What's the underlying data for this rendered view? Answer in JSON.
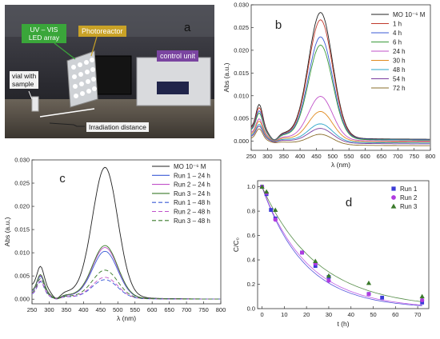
{
  "photo": {
    "panel_letter": "a",
    "labels": {
      "led": [
        "UV – VIS",
        "LED array"
      ],
      "photoreactor": "Photoreactor",
      "control": "control unit",
      "vial": [
        "vial with",
        "sample"
      ],
      "distance": "Irradiation distance"
    },
    "colors": {
      "green_label": "#3aa63a",
      "yellow_label": "#c9a227",
      "purple_label": "#7a44a0"
    }
  },
  "chart_data": [
    {
      "panel": "b",
      "type": "line",
      "xlabel": "λ (nm)",
      "ylabel": "Abs (a.u.)",
      "xlim": [
        250,
        800
      ],
      "ylim": [
        -0.002,
        0.03
      ],
      "xticks": [
        "250",
        "300",
        "350",
        "400",
        "450",
        "500",
        "550",
        "600",
        "650",
        "700",
        "750",
        "800"
      ],
      "yticks": [
        "0.000",
        "0.005",
        "0.010",
        "0.015",
        "0.020",
        "0.025",
        "0.030"
      ],
      "legend_placement": "top-right",
      "series": [
        {
          "name": "MO 10⁻⁶ M",
          "color": "#222222",
          "dash": "",
          "peak": 0.0278,
          "uvpeak": 0.0082,
          "min": 0.003,
          "tail": 0.0004
        },
        {
          "name": "1 h",
          "color": "#c0392b",
          "dash": "",
          "peak": 0.0262,
          "uvpeak": 0.0075,
          "min": 0.0028,
          "tail": 0.0003
        },
        {
          "name": "4 h",
          "color": "#3b5bd6",
          "dash": "",
          "peak": 0.0225,
          "uvpeak": 0.0068,
          "min": 0.0026,
          "tail": 0.0003
        },
        {
          "name": "6 h",
          "color": "#3a9a3a",
          "dash": "",
          "peak": 0.0207,
          "uvpeak": 0.0063,
          "min": 0.0024,
          "tail": 0.0002
        },
        {
          "name": "24 h",
          "color": "#c051c9",
          "dash": "",
          "peak": 0.0095,
          "uvpeak": 0.005,
          "min": 0.0018,
          "tail": 0.0
        },
        {
          "name": "30 h",
          "color": "#e08a1e",
          "dash": "",
          "peak": 0.0062,
          "uvpeak": 0.0045,
          "min": 0.0015,
          "tail": -0.0002
        },
        {
          "name": "48 h",
          "color": "#2aa5c8",
          "dash": "",
          "peak": 0.0035,
          "uvpeak": 0.0038,
          "min": 0.0012,
          "tail": -0.0004
        },
        {
          "name": "54 h",
          "color": "#7b3fa0",
          "dash": "",
          "peak": 0.0025,
          "uvpeak": 0.0034,
          "min": 0.001,
          "tail": -0.0006
        },
        {
          "name": "72 h",
          "color": "#8a6d2b",
          "dash": "",
          "peak": 0.0012,
          "uvpeak": 0.0028,
          "min": 0.0006,
          "tail": -0.001
        }
      ]
    },
    {
      "panel": "c",
      "type": "line",
      "xlabel": "λ (nm)",
      "ylabel": "Abs (a.u.)",
      "xlim": [
        250,
        800
      ],
      "ylim": [
        -0.001,
        0.03
      ],
      "xticks": [
        "250",
        "300",
        "350",
        "400",
        "450",
        "500",
        "550",
        "600",
        "650",
        "700",
        "750",
        "800"
      ],
      "yticks": [
        "0.000",
        "0.005",
        "0.010",
        "0.015",
        "0.020",
        "0.025",
        "0.030"
      ],
      "legend_placement": "top-right",
      "series": [
        {
          "name": "MO 10⁻⁶ M",
          "color": "#222222",
          "dash": "",
          "peak": 0.0278,
          "uvpeak": 0.0072,
          "min": 0.003,
          "tail": 0.0
        },
        {
          "name": "Run 1 – 24 h",
          "color": "#3b5bd6",
          "dash": "",
          "peak": 0.01,
          "uvpeak": 0.005,
          "min": 0.0016,
          "tail": 0.0
        },
        {
          "name": "Run 2 – 24 h",
          "color": "#c051c9",
          "dash": "",
          "peak": 0.0108,
          "uvpeak": 0.0052,
          "min": 0.0017,
          "tail": 0.0
        },
        {
          "name": "Run 3 – 24 h",
          "color": "#3a7a2a",
          "dash": "",
          "peak": 0.0112,
          "uvpeak": 0.0054,
          "min": 0.0018,
          "tail": 0.0
        },
        {
          "name": "Run 1 – 48 h",
          "color": "#3b5bd6",
          "dash": "5,3",
          "peak": 0.004,
          "uvpeak": 0.0038,
          "min": 0.001,
          "tail": 0.0
        },
        {
          "name": "Run 2 – 48 h",
          "color": "#c051c9",
          "dash": "5,3",
          "peak": 0.0045,
          "uvpeak": 0.004,
          "min": 0.0011,
          "tail": 0.0
        },
        {
          "name": "Run 3 – 48 h",
          "color": "#3a7a2a",
          "dash": "5,3",
          "peak": 0.006,
          "uvpeak": 0.0045,
          "min": 0.0013,
          "tail": 0.0
        }
      ]
    },
    {
      "panel": "d",
      "type": "scatter",
      "xlabel": "t (h)",
      "ylabel": "C/C₀",
      "xlim": [
        -2,
        75
      ],
      "ylim": [
        0,
        1.05
      ],
      "xticks": [
        "0",
        "10",
        "20",
        "30",
        "40",
        "50",
        "60",
        "70"
      ],
      "yticks": [
        "0.0",
        "0.2",
        "0.4",
        "0.6",
        "0.8",
        "1.0"
      ],
      "legend_placement": "top-right",
      "series": [
        {
          "name": "Run 1",
          "color": "#3b3bd6",
          "marker": "square",
          "x": [
            0,
            2,
            4,
            6,
            18,
            24,
            30,
            48,
            54,
            72
          ],
          "y": [
            1.0,
            0.94,
            0.81,
            0.74,
            0.46,
            0.35,
            0.26,
            0.12,
            0.09,
            0.05
          ],
          "fit_k": 0.052
        },
        {
          "name": "Run 2",
          "color": "#b03be0",
          "marker": "circle",
          "x": [
            0,
            2,
            6,
            18,
            24,
            30,
            48,
            72
          ],
          "y": [
            1.0,
            0.95,
            0.73,
            0.46,
            0.37,
            0.23,
            0.12,
            0.07
          ],
          "fit_k": 0.049
        },
        {
          "name": "Run 3",
          "color": "#3a7a2a",
          "marker": "triangle",
          "x": [
            0,
            2,
            6,
            24,
            30,
            48,
            72
          ],
          "y": [
            1.0,
            0.96,
            0.81,
            0.39,
            0.27,
            0.21,
            0.1
          ],
          "fit_k": 0.04
        }
      ]
    }
  ]
}
